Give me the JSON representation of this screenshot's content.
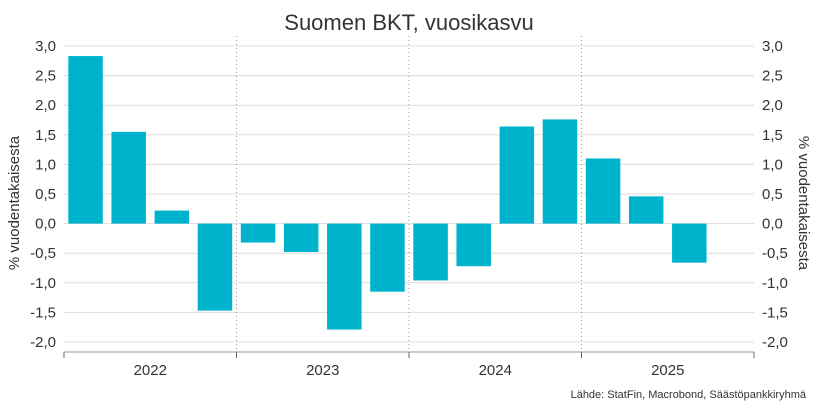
{
  "chart_data": {
    "type": "bar",
    "title": "Suomen BKT, vuosikasvu",
    "ylabel": "% vuodentakaisesta",
    "ylabel_right": "% vuodentakaisesta",
    "source": "Lähde: StatFin, Macrobond, Säästöpankkiryhmä",
    "ylim": [
      -2.0,
      3.0
    ],
    "yticks": [
      "3,0",
      "2,5",
      "2,0",
      "1,5",
      "1,0",
      "0,5",
      "0,0",
      "-0,5",
      "-1,0",
      "-1,5",
      "-2,0"
    ],
    "ytick_values": [
      3.0,
      2.5,
      2.0,
      1.5,
      1.0,
      0.5,
      0.0,
      -0.5,
      -1.0,
      -1.5,
      -2.0
    ],
    "years": [
      "2022",
      "2023",
      "2024",
      "2025"
    ],
    "categories": [
      "2022Q1",
      "2022Q2",
      "2022Q3",
      "2022Q4",
      "2023Q1",
      "2023Q2",
      "2023Q3",
      "2023Q4",
      "2024Q1",
      "2024Q2",
      "2024Q3",
      "2024Q4",
      "2025Q1",
      "2025Q2",
      "2025Q3"
    ],
    "values": [
      2.83,
      1.55,
      0.22,
      -1.47,
      -0.32,
      -0.48,
      -1.79,
      -1.15,
      -0.96,
      -0.72,
      1.64,
      1.76,
      1.1,
      0.46,
      -0.66
    ],
    "bar_color": "#00b3cc",
    "grid": true,
    "legend": "none"
  }
}
